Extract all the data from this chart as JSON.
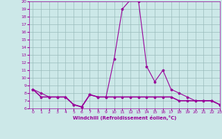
{
  "xlabel": "Windchill (Refroidissement éolien,°C)",
  "x": [
    0,
    1,
    2,
    3,
    4,
    5,
    6,
    7,
    8,
    9,
    10,
    11,
    12,
    13,
    14,
    15,
    16,
    17,
    18,
    19,
    20,
    21,
    22,
    23
  ],
  "y_temp": [
    8.5,
    8.0,
    7.5,
    7.5,
    7.5,
    6.5,
    6.2,
    7.8,
    7.5,
    7.5,
    12.5,
    19.0,
    20.2,
    20.0,
    11.5,
    9.5,
    11.0,
    8.5,
    8.0,
    7.5,
    7.0,
    7.0,
    7.0,
    6.5
  ],
  "y_ref": [
    8.5,
    7.5,
    7.5,
    7.5,
    7.5,
    6.5,
    6.2,
    7.8,
    7.5,
    7.5,
    7.5,
    7.5,
    7.5,
    7.5,
    7.5,
    7.5,
    7.5,
    7.5,
    7.0,
    7.0,
    7.0,
    7.0,
    7.0,
    6.5
  ],
  "line_color": "#990099",
  "bg_color": "#cce8e8",
  "grid_color": "#99bbbb",
  "ylim": [
    6,
    20
  ],
  "xlim": [
    -0.5,
    23
  ],
  "yticks": [
    6,
    7,
    8,
    9,
    10,
    11,
    12,
    13,
    14,
    15,
    16,
    17,
    18,
    19,
    20
  ],
  "xticks": [
    0,
    1,
    2,
    3,
    4,
    5,
    6,
    7,
    8,
    9,
    10,
    11,
    12,
    13,
    14,
    15,
    16,
    17,
    18,
    19,
    20,
    21,
    22,
    23
  ]
}
